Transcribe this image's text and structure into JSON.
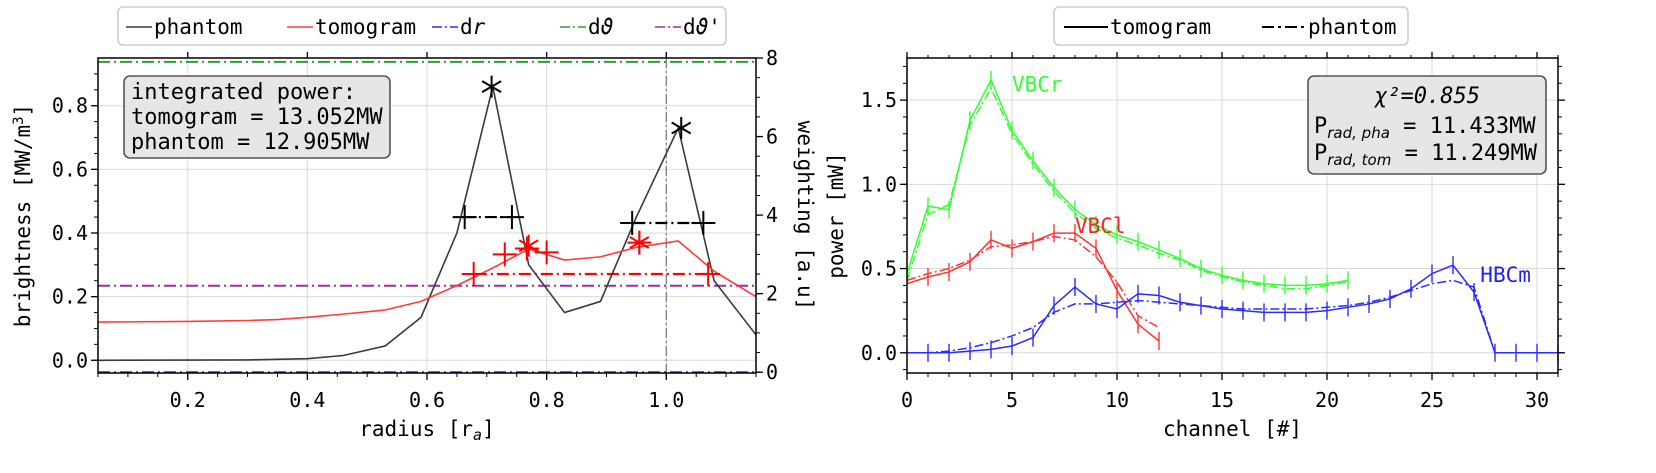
{
  "chart_data": [
    {
      "type": "line",
      "panel": "left",
      "xlabel": "radius [r",
      "xlabel_sub": "a",
      "xlabel_close": "]",
      "ylabel": "brightness [MW/m",
      "ylabel_sup": "3",
      "ylabel_close": "]",
      "y2label": "weighting [a.u]",
      "xlim": [
        0.05,
        1.15
      ],
      "ylim": [
        -0.04,
        0.95
      ],
      "y2lim": [
        -0.02,
        8.0
      ],
      "xticks": [
        0.2,
        0.4,
        0.6,
        0.8,
        1.0
      ],
      "xtick_labels": [
        "0.2",
        "0.4",
        "0.6",
        "0.8",
        "1.0"
      ],
      "yticks": [
        0.0,
        0.2,
        0.4,
        0.6,
        0.8
      ],
      "ytick_labels": [
        "0.0",
        "0.2",
        "0.4",
        "0.6",
        "0.8"
      ],
      "y2ticks": [
        0,
        2,
        4,
        6,
        8
      ],
      "y2tick_labels": [
        "0",
        "2",
        "4",
        "6",
        "8"
      ],
      "vline_x": 1.0,
      "legend": [
        {
          "label": "phantom",
          "color": "#3a3a3a",
          "style": "solid"
        },
        {
          "label": "tomogram",
          "color": "#ff3b3b",
          "style": "solid"
        },
        {
          "label": "dr",
          "color": "#2b2bff",
          "style": "dashdot"
        },
        {
          "label": "dϑ",
          "color": "#2ca02c",
          "style": "dashdot"
        },
        {
          "label": "dϑ'",
          "color": "#a22ca0",
          "style": "dashdot"
        }
      ],
      "series": [
        {
          "name": "phantom",
          "color": "#3a3a3a",
          "x": [
            0.05,
            0.3,
            0.4,
            0.46,
            0.53,
            0.59,
            0.65,
            0.71,
            0.77,
            0.83,
            0.89,
            0.95,
            1.02,
            1.08,
            1.15
          ],
          "y": [
            0.0,
            0.001,
            0.005,
            0.015,
            0.045,
            0.135,
            0.4,
            0.86,
            0.3,
            0.15,
            0.185,
            0.45,
            0.73,
            0.25,
            0.08
          ]
        },
        {
          "name": "tomogram",
          "color": "#ff3b3b",
          "x": [
            0.05,
            0.2,
            0.3,
            0.35,
            0.4,
            0.46,
            0.53,
            0.59,
            0.65,
            0.71,
            0.77,
            0.83,
            0.89,
            0.95,
            1.02,
            1.08,
            1.15
          ],
          "y": [
            0.12,
            0.122,
            0.125,
            0.128,
            0.135,
            0.145,
            0.158,
            0.185,
            0.235,
            0.29,
            0.35,
            0.315,
            0.325,
            0.355,
            0.375,
            0.28,
            0.2
          ]
        },
        {
          "name": "dr",
          "color": "#2b2bff",
          "axis": "y2",
          "x": [
            0.05,
            1.15
          ],
          "y": [
            0,
            0
          ]
        },
        {
          "name": "dtheta",
          "color": "#2ca02c",
          "axis": "y2",
          "x": [
            0.05,
            1.15
          ],
          "y": [
            7.9,
            7.9
          ]
        },
        {
          "name": "dtheta_prime",
          "color": "#a22ca0",
          "axis": "y2",
          "x": [
            0.05,
            1.15
          ],
          "y": [
            2.2,
            2.2
          ]
        }
      ],
      "weighting_segments": [
        {
          "color": "#000000",
          "x": [
            0.66,
            0.745
          ],
          "y2": 3.95
        },
        {
          "color": "#000000",
          "x": [
            0.945,
            1.06
          ],
          "y2": 3.8
        },
        {
          "color": "#ff0000",
          "x": [
            0.68,
            1.07
          ],
          "y2": 2.5
        }
      ],
      "crosses": [
        {
          "color": "#000000",
          "x": 0.663,
          "y2": 3.95
        },
        {
          "color": "#000000",
          "x": 0.742,
          "y2": 3.95
        },
        {
          "color": "#000000",
          "x": 0.943,
          "y2": 3.8
        },
        {
          "color": "#000000",
          "x": 1.062,
          "y2": 3.8
        },
        {
          "color": "#ff0000",
          "x": 0.678,
          "y2": 2.5
        },
        {
          "color": "#ff0000",
          "x": 1.07,
          "y2": 2.5
        },
        {
          "color": "#ff0000",
          "x": 0.73,
          "y2": 3.0
        },
        {
          "color": "#ff0000",
          "x": 0.8,
          "y2": 3.05
        },
        {
          "color": "#ff0000",
          "x": 0.767,
          "y2": 3.15
        },
        {
          "color": "#ff0000",
          "x": 0.955,
          "y2": 3.3
        }
      ],
      "stars": [
        {
          "color": "#000000",
          "x": 0.708,
          "y": 0.86
        },
        {
          "color": "#000000",
          "x": 1.025,
          "y": 0.73
        },
        {
          "color": "#ff0000",
          "x": 0.77,
          "y": 0.36
        },
        {
          "color": "#ff0000",
          "x": 0.955,
          "y": 0.37
        }
      ],
      "textbox": [
        "integrated power:",
        "tomogram = 13.052MW",
        "phantom = 12.905MW"
      ]
    },
    {
      "type": "line",
      "panel": "right",
      "xlabel": "channel [#]",
      "ylabel": "power [mW]",
      "xlim": [
        0,
        31
      ],
      "ylim": [
        -0.12,
        1.75
      ],
      "xticks": [
        0,
        5,
        10,
        15,
        20,
        25,
        30
      ],
      "xtick_labels": [
        "0",
        "5",
        "10",
        "15",
        "20",
        "25",
        "30"
      ],
      "yticks": [
        0.0,
        0.5,
        1.0,
        1.5
      ],
      "ytick_labels": [
        "0.0",
        "0.5",
        "1.0",
        "1.5"
      ],
      "legend": [
        {
          "label": "tomogram",
          "color": "#000000",
          "style": "solid"
        },
        {
          "label": "phantom",
          "color": "#000000",
          "style": "dashdot"
        }
      ],
      "series": [
        {
          "name": "VBCr tomogram",
          "color": "#33ff33",
          "style": "solid",
          "x": [
            0,
            1,
            2,
            3,
            4,
            5,
            6,
            7,
            8,
            9,
            10,
            11,
            12,
            13,
            14,
            15,
            16,
            17,
            18,
            19,
            20,
            21
          ],
          "y": [
            0.47,
            0.87,
            0.85,
            1.38,
            1.62,
            1.32,
            1.14,
            0.98,
            0.85,
            0.76,
            0.7,
            0.66,
            0.61,
            0.56,
            0.5,
            0.46,
            0.43,
            0.41,
            0.4,
            0.4,
            0.41,
            0.43
          ]
        },
        {
          "name": "VBCr phantom",
          "color": "#33ff33",
          "style": "dashdot",
          "x": [
            0,
            1,
            2,
            3,
            4,
            5,
            6,
            7,
            8,
            9,
            10,
            11,
            12,
            13,
            14,
            15,
            16,
            17,
            18,
            19,
            20,
            21
          ],
          "y": [
            0.43,
            0.82,
            0.88,
            1.35,
            1.57,
            1.3,
            1.12,
            0.96,
            0.83,
            0.74,
            0.68,
            0.64,
            0.59,
            0.55,
            0.49,
            0.45,
            0.42,
            0.4,
            0.38,
            0.38,
            0.4,
            0.42
          ]
        },
        {
          "name": "VBCl tomogram",
          "color": "#ff3333",
          "style": "solid",
          "x": [
            0,
            1,
            2,
            3,
            4,
            5,
            6,
            7,
            8,
            9,
            10,
            11,
            12
          ],
          "y": [
            0.41,
            0.45,
            0.48,
            0.54,
            0.67,
            0.62,
            0.66,
            0.71,
            0.71,
            0.62,
            0.37,
            0.17,
            0.07
          ]
        },
        {
          "name": "VBCl phantom",
          "color": "#ff3333",
          "style": "dashdot",
          "x": [
            0,
            1,
            2,
            3,
            4,
            5,
            6,
            7,
            8,
            9,
            10,
            11,
            12
          ],
          "y": [
            0.43,
            0.47,
            0.5,
            0.55,
            0.63,
            0.64,
            0.66,
            0.69,
            0.67,
            0.57,
            0.42,
            0.22,
            0.15
          ]
        },
        {
          "name": "HBCm tomogram",
          "color": "#2b2bff",
          "style": "solid",
          "x": [
            0,
            1,
            2,
            3,
            4,
            5,
            6,
            7,
            8,
            9,
            10,
            11,
            12,
            13,
            14,
            15,
            16,
            17,
            18,
            19,
            20,
            21,
            22,
            23,
            24,
            25,
            26,
            27,
            28,
            29,
            30,
            31
          ],
          "y": [
            0.0,
            0.0,
            0.0,
            0.01,
            0.02,
            0.04,
            0.09,
            0.28,
            0.39,
            0.29,
            0.26,
            0.35,
            0.34,
            0.3,
            0.28,
            0.26,
            0.25,
            0.24,
            0.24,
            0.24,
            0.25,
            0.27,
            0.29,
            0.32,
            0.38,
            0.47,
            0.52,
            0.36,
            0.0,
            0.0,
            0.0,
            0.0
          ]
        },
        {
          "name": "HBCm phantom",
          "color": "#2b2bff",
          "style": "dashdot",
          "x": [
            0,
            1,
            2,
            3,
            4,
            5,
            6,
            7,
            8,
            9,
            10,
            11,
            12,
            13,
            14,
            15,
            16,
            17,
            18,
            19,
            20,
            21,
            22,
            23,
            24,
            25,
            26,
            27,
            28,
            29,
            30,
            31
          ],
          "y": [
            0.0,
            0.0,
            0.01,
            0.03,
            0.06,
            0.1,
            0.15,
            0.24,
            0.29,
            0.29,
            0.3,
            0.31,
            0.3,
            0.29,
            0.28,
            0.27,
            0.26,
            0.26,
            0.26,
            0.26,
            0.27,
            0.28,
            0.3,
            0.33,
            0.37,
            0.41,
            0.43,
            0.39,
            0.0,
            0.0,
            0.0,
            0.0
          ]
        }
      ],
      "series_labels": [
        {
          "text": "VBCr",
          "color": "#33ff33",
          "x": 5.0,
          "y": 1.55
        },
        {
          "text": "VBCl",
          "color": "#ff2222",
          "x": 8.0,
          "y": 0.71
        },
        {
          "text": "HBCm",
          "color": "#2222ee",
          "x": 27.3,
          "y": 0.42
        }
      ],
      "textbox": {
        "line1": "χ²=0.855",
        "line2_main": "P",
        "line2_sub": "rad, pha",
        "line2_rest": " = 11.433MW",
        "line3_main": "P",
        "line3_sub": "rad, tom",
        "line3_rest": " = 11.249MW"
      }
    }
  ]
}
